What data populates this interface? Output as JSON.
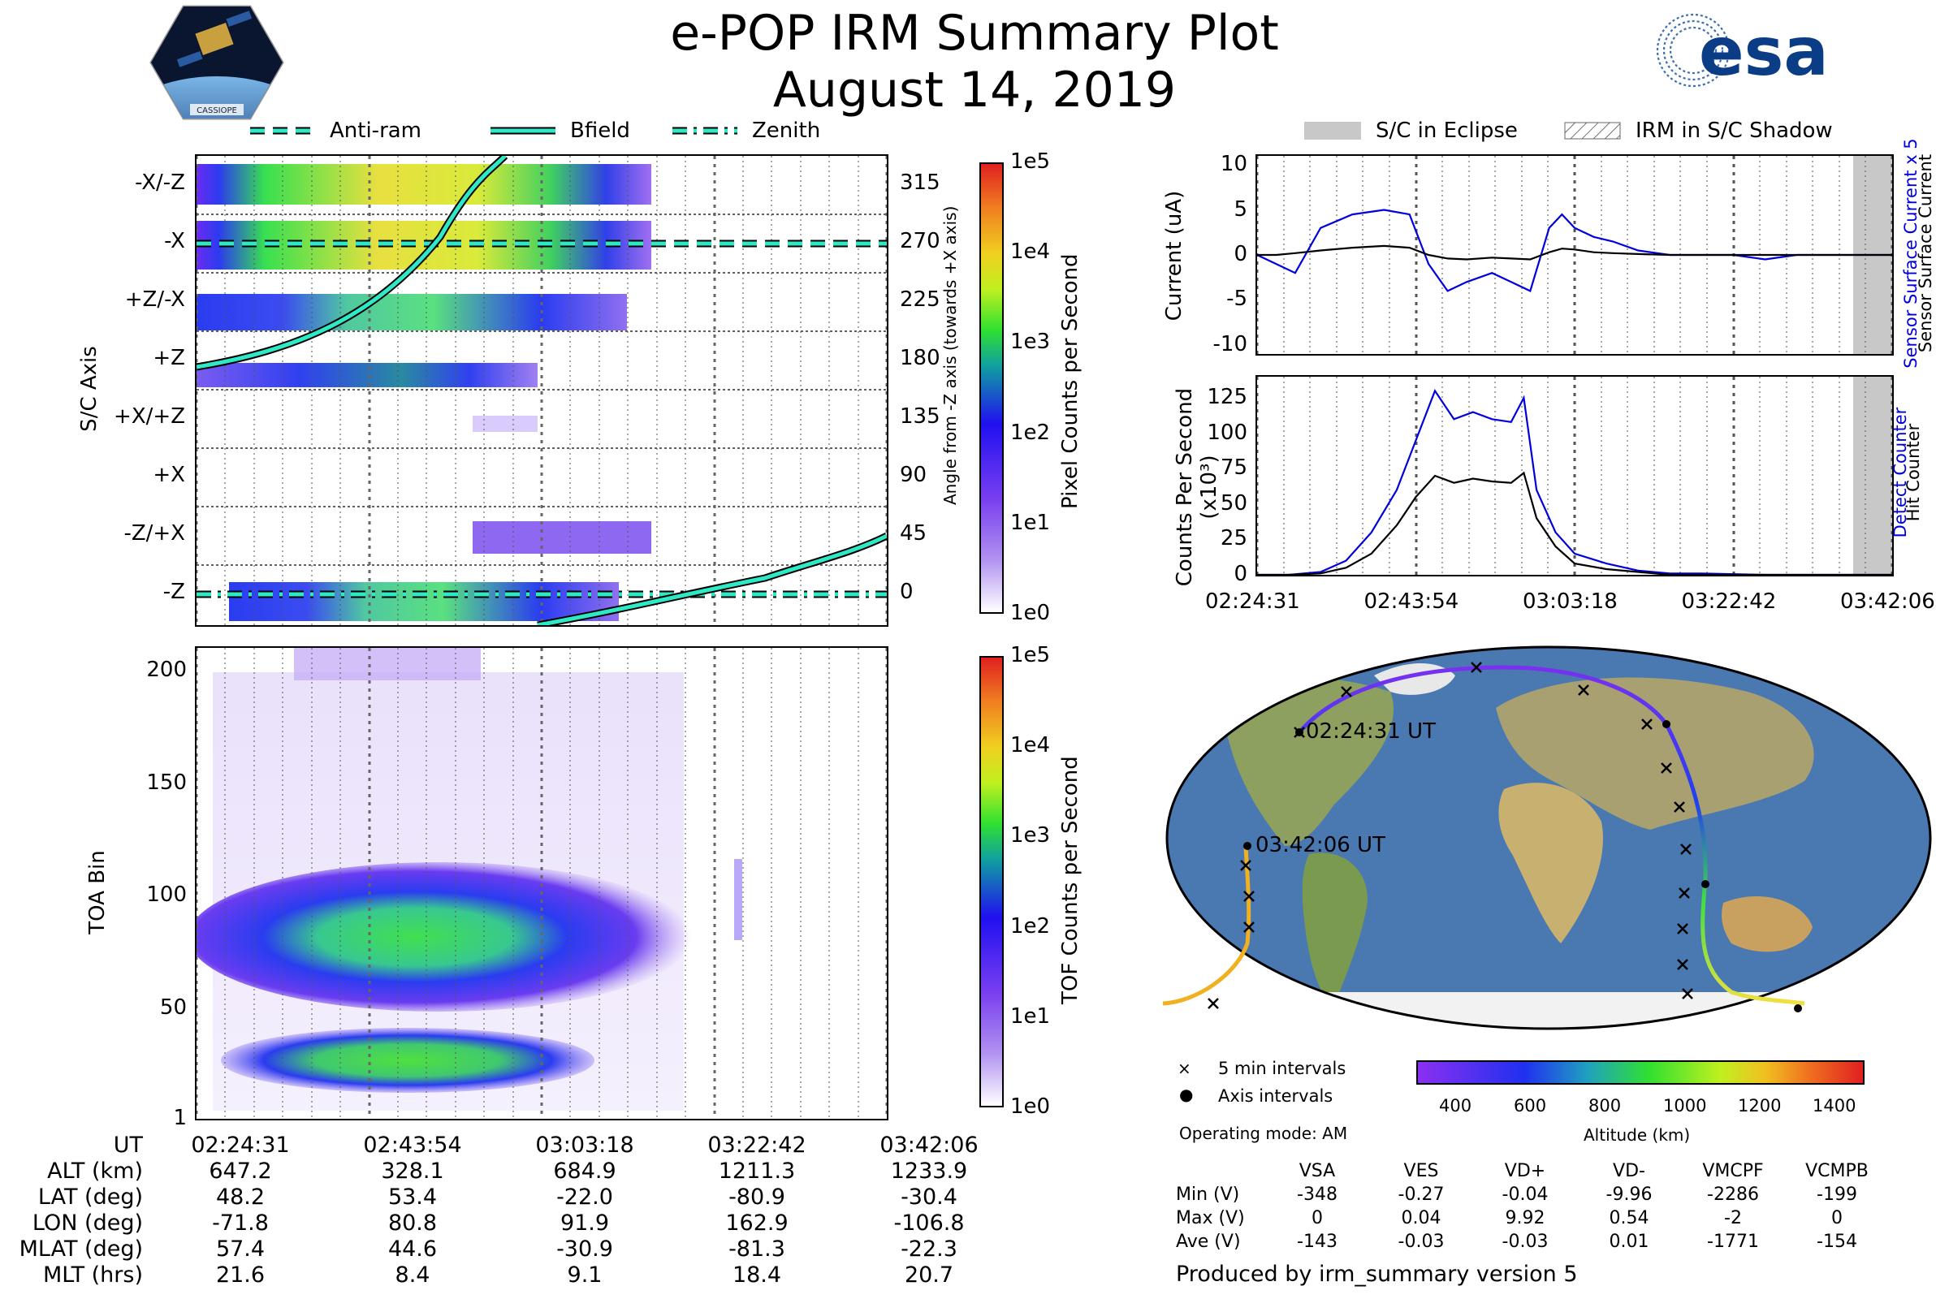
{
  "title": "e-POP IRM Summary Plot",
  "date": "August 14, 2019",
  "logos": {
    "cassiope": "CASSIOPE",
    "esa": "esa"
  },
  "top_legend": [
    {
      "label": "Anti-ram",
      "style": "dashed"
    },
    {
      "label": "Bfield",
      "style": "solid"
    },
    {
      "label": "Zenith",
      "style": "dashdot"
    }
  ],
  "right_legend": [
    {
      "label": "S/C in Eclipse",
      "style": "gray"
    },
    {
      "label": "IRM in S/C Shadow",
      "style": "hatched"
    }
  ],
  "colors": {
    "line_accent": "#2ee8c6",
    "sensor_blue": "#0000dd",
    "eclipse_gray": "#c8c8c8"
  },
  "chart_data": [
    {
      "type": "heatmap",
      "name": "pixel_counts",
      "ylabel": "S/C Axis",
      "y_right_label": "Angle from -Z axis (towards +X axis)",
      "y_categories": [
        "-X/-Z",
        "-X",
        "+Z/-X",
        "+Z",
        "+X/+Z",
        "+X",
        "-Z/+X",
        "-Z"
      ],
      "y_right_ticks": [
        "315",
        "270",
        "225",
        "180",
        "135",
        "90",
        "45",
        "0"
      ],
      "colorbar_label": "Pixel Counts per Second",
      "colorbar_ticks": [
        "1e5",
        "1e4",
        "1e3",
        "1e2",
        "1e1",
        "1e0"
      ],
      "lines": [
        {
          "name": "Anti-ram",
          "y_deg": 270
        },
        {
          "name": "Zenith",
          "y_deg": 0
        },
        {
          "name": "Bfield",
          "y_deg_start": 175,
          "y_deg_end": 45
        }
      ]
    },
    {
      "type": "heatmap",
      "name": "tof_counts",
      "ylabel": "TOA Bin",
      "y_ticks": [
        "200",
        "150",
        "100",
        "50",
        "1"
      ],
      "ylim": [
        1,
        210
      ],
      "colorbar_label": "TOF Counts per Second",
      "colorbar_ticks": [
        "1e5",
        "1e4",
        "1e3",
        "1e2",
        "1e1",
        "1e0"
      ]
    },
    {
      "type": "line",
      "name": "current",
      "ylabel": "Current (uA)",
      "y_ticks": [
        "10",
        "5",
        "0",
        "-5",
        "-10"
      ],
      "ylim": [
        -11,
        11
      ],
      "right_labels": [
        "Sensor Surface Current x 5",
        "Sensor Surface Current"
      ],
      "x": [
        0,
        0.03,
        0.06,
        0.1,
        0.15,
        0.2,
        0.24,
        0.27,
        0.3,
        0.33,
        0.37,
        0.4,
        0.43,
        0.46,
        0.48,
        0.5,
        0.53,
        0.56,
        0.6,
        0.65,
        0.7,
        0.75,
        0.8,
        0.85,
        0.9,
        0.95,
        1.0
      ],
      "series": [
        {
          "name": "Sensor Surface Current x 5",
          "values": [
            0,
            -1,
            -2,
            3,
            4.5,
            5,
            4.5,
            -1,
            -4,
            -3,
            -2,
            -3,
            -4,
            3,
            4.5,
            3,
            2,
            1.5,
            0.5,
            0,
            0,
            0,
            -0.5,
            0,
            0,
            0,
            0
          ]
        },
        {
          "name": "Sensor Surface Current",
          "values": [
            0,
            0,
            0.2,
            0.5,
            0.8,
            1.0,
            0.8,
            0,
            -0.4,
            -0.5,
            -0.3,
            -0.4,
            -0.5,
            0.3,
            0.7,
            0.6,
            0.3,
            0.2,
            0.1,
            0,
            0,
            0,
            0,
            0,
            0,
            0,
            0
          ]
        }
      ]
    },
    {
      "type": "line",
      "name": "hit_counter",
      "ylabel": "Counts Per Second (x10³)",
      "y_ticks": [
        "125",
        "100",
        "75",
        "50",
        "25",
        "0"
      ],
      "ylim": [
        0,
        140
      ],
      "right_labels": [
        "Detect Counter",
        "Hit Counter"
      ],
      "x_ticks": [
        "02:24:31",
        "02:43:54",
        "03:03:18",
        "03:22:42",
        "03:42:06"
      ],
      "x": [
        0,
        0.05,
        0.1,
        0.14,
        0.18,
        0.22,
        0.25,
        0.28,
        0.31,
        0.34,
        0.37,
        0.4,
        0.42,
        0.44,
        0.47,
        0.5,
        0.55,
        0.6,
        0.65,
        0.7,
        0.8,
        0.9,
        1.0
      ],
      "series": [
        {
          "name": "Detect Counter",
          "values": [
            0,
            0,
            2,
            10,
            30,
            60,
            95,
            130,
            110,
            115,
            110,
            108,
            125,
            60,
            30,
            15,
            8,
            3,
            1,
            1,
            0,
            0,
            0
          ]
        },
        {
          "name": "Hit Counter",
          "values": [
            0,
            0,
            1,
            5,
            15,
            35,
            55,
            70,
            65,
            68,
            66,
            65,
            72,
            40,
            20,
            8,
            4,
            2,
            0,
            0,
            0,
            0,
            0
          ]
        }
      ]
    }
  ],
  "ut_axis": [
    "02:24:31",
    "02:43:54",
    "03:03:18",
    "03:22:42",
    "03:42:06"
  ],
  "position_table": [
    {
      "label": "UT",
      "values": [
        "02:24:31",
        "02:43:54",
        "03:03:18",
        "03:22:42",
        "03:42:06"
      ]
    },
    {
      "label": "ALT (km)",
      "values": [
        "647.2",
        "328.1",
        "684.9",
        "1211.3",
        "1233.9"
      ]
    },
    {
      "label": "LAT (deg)",
      "values": [
        "48.2",
        "53.4",
        "-22.0",
        "-80.9",
        "-30.4"
      ]
    },
    {
      "label": "LON (deg)",
      "values": [
        "-71.8",
        "80.8",
        "91.9",
        "162.9",
        "-106.8"
      ]
    },
    {
      "label": "MLAT (deg)",
      "values": [
        "57.4",
        "44.6",
        "-30.9",
        "-81.3",
        "-22.3"
      ]
    },
    {
      "label": "MLT (hrs)",
      "values": [
        "21.6",
        "8.4",
        "9.1",
        "18.4",
        "20.7"
      ]
    }
  ],
  "map": {
    "start_label": "02:24:31 UT",
    "end_label": "03:42:06 UT",
    "legend": [
      "5 min intervals",
      "Axis intervals"
    ],
    "altitude_ticks": [
      "400",
      "600",
      "800",
      "1000",
      "1200",
      "1400"
    ],
    "altitude_label": "Altitude (km)"
  },
  "operating_mode": "Operating mode: AM",
  "voltage_table": {
    "headers": [
      "",
      "VSA",
      "VES",
      "VD+",
      "VD-",
      "VMCPF",
      "VCMPB"
    ],
    "rows": [
      [
        "Min (V)",
        "-348",
        "-0.27",
        "-0.04",
        "-9.96",
        "-2286",
        "-199"
      ],
      [
        "Max (V)",
        "0",
        "0.04",
        "9.92",
        "0.54",
        "-2",
        "0"
      ],
      [
        "Ave (V)",
        "-143",
        "-0.03",
        "-0.03",
        "0.01",
        "-1771",
        "-154"
      ]
    ]
  },
  "footer": "Produced by irm_summary version 5"
}
